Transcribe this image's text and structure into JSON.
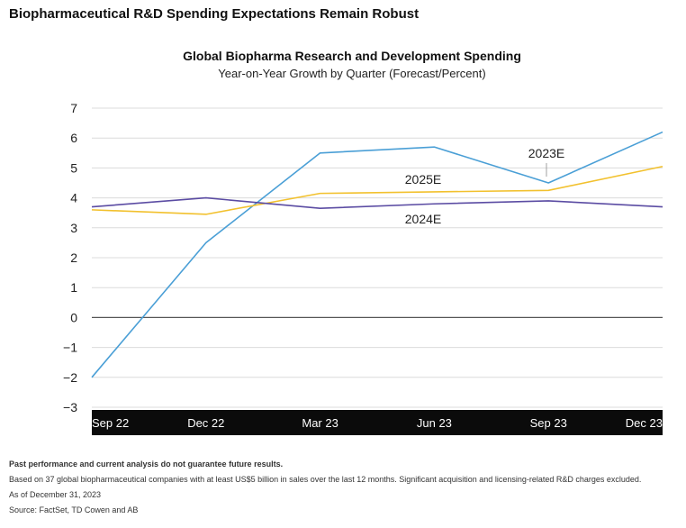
{
  "page_title": "Biopharmaceutical R&D Spending Expectations Remain Robust",
  "chart_data": {
    "type": "line",
    "title": "Global Biopharma Research and Development Spending",
    "subtitle": "Year-on-Year Growth by Quarter (Forecast/Percent)",
    "xlabel": "",
    "ylabel": "",
    "categories": [
      "Sep 22",
      "Dec 22",
      "Mar 23",
      "Jun 23",
      "Sep 23",
      "Dec 23"
    ],
    "y_ticks": [
      "7",
      "6",
      "5",
      "4",
      "3",
      "2",
      "1",
      "0",
      "−1",
      "−2",
      "−3"
    ],
    "ylim": [
      -3,
      7
    ],
    "grid": true,
    "series": [
      {
        "name": "2023E",
        "color": "#4a9fd6",
        "values": [
          -2.0,
          2.5,
          5.5,
          5.7,
          4.5,
          6.2
        ]
      },
      {
        "name": "2025E",
        "color": "#f2c12e",
        "values": [
          3.6,
          3.45,
          4.15,
          4.2,
          4.25,
          5.05
        ]
      },
      {
        "name": "2024E",
        "color": "#5b4ca3",
        "values": [
          3.7,
          4.0,
          3.65,
          3.8,
          3.9,
          3.7
        ]
      }
    ]
  },
  "footnotes": {
    "disclaimer": "Past performance and current analysis do not guarantee future results.",
    "methodology": "Based on 37 global biopharmaceutical companies with at least US$5 billion in sales over the last 12 months. Significant acquisition and licensing-related R&D charges excluded.",
    "as_of": "As of December 31, 2023",
    "source": "Source: FactSet, TD Cowen and AB"
  }
}
